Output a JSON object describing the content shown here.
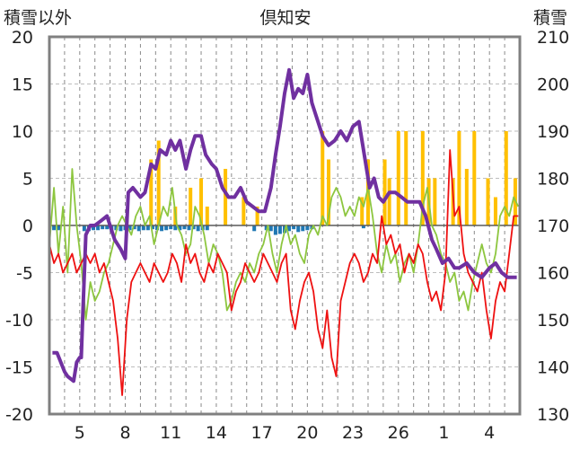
{
  "chart_data": {
    "type": "line",
    "title": "倶知安",
    "left_axis_label": "積雪以外",
    "right_axis_label": "積雪",
    "left_ylim": [
      -20,
      20
    ],
    "left_ticks": [
      "20",
      "15",
      "10",
      "5",
      "0",
      "-5",
      "-10",
      "-15",
      "-20"
    ],
    "right_ylim": [
      130,
      210
    ],
    "right_ticks": [
      "210",
      "200",
      "190",
      "180",
      "170",
      "160",
      "150",
      "140",
      "130"
    ],
    "x_ticks": [
      {
        "day": 5,
        "label": "5"
      },
      {
        "day": 8,
        "label": "8"
      },
      {
        "day": 11,
        "label": "11"
      },
      {
        "day": 14,
        "label": "14"
      },
      {
        "day": 17,
        "label": "17"
      },
      {
        "day": 20,
        "label": "20"
      },
      {
        "day": 23,
        "label": "23"
      },
      {
        "day": 26,
        "label": "26"
      },
      {
        "day": 29,
        "label": "1"
      },
      {
        "day": 32,
        "label": "4"
      }
    ],
    "grid": true,
    "colors": {
      "max_temp": "#8dc63f",
      "min_temp": "#ee1111",
      "snowfall": "#ffc000",
      "sunshine": "#1f78b4",
      "snow_depth": "#7030a0",
      "frame": "#808080"
    },
    "series": [
      {
        "key": "snow_depth",
        "axis": "right",
        "x": [
          3.2,
          3.5,
          4.0,
          4.2,
          4.6,
          4.8,
          5.0,
          5.1,
          5.2,
          5.4,
          5.7,
          6.0,
          6.4,
          6.8,
          7.3,
          7.7,
          8.0,
          8.2,
          8.5,
          9.0,
          9.3,
          9.7,
          10.0,
          10.3,
          10.7,
          11.0,
          11.3,
          11.6,
          12.0,
          12.3,
          12.6,
          13.0,
          13.3,
          13.7,
          14.0,
          14.4,
          14.8,
          15.2,
          15.6,
          16.0,
          16.4,
          16.8,
          17.2,
          17.6,
          17.9,
          18.2,
          18.5,
          18.8,
          19.1,
          19.4,
          19.7,
          20.0,
          20.3,
          20.6,
          21.0,
          21.4,
          21.8,
          22.2,
          22.6,
          23.0,
          23.4,
          23.8,
          24.1,
          24.4,
          24.7,
          25.0,
          25.4,
          25.8,
          26.2,
          26.6,
          27.0,
          27.4,
          27.8,
          28.2,
          28.5,
          28.9,
          29.3,
          29.7,
          30.0,
          30.5,
          31.0,
          31.5,
          32.0,
          32.4,
          32.8,
          33.2,
          33.6,
          33.8
        ],
        "values": [
          143,
          143,
          139,
          138,
          137,
          141,
          142,
          142,
          151,
          168,
          170,
          170,
          171,
          172,
          167,
          165,
          163,
          177,
          178,
          176,
          177,
          183,
          182,
          186,
          185,
          188,
          186,
          188,
          182,
          186,
          189,
          189,
          185,
          183,
          182,
          178,
          176,
          176,
          178,
          175,
          174,
          173,
          173,
          178,
          185,
          191,
          198,
          203,
          197,
          199,
          198,
          202,
          196,
          193,
          189,
          187,
          188,
          190,
          188,
          191,
          192,
          184,
          178,
          180,
          176,
          175,
          177,
          177,
          176,
          175,
          175,
          175,
          172,
          167,
          165,
          162,
          163,
          161,
          161,
          162,
          160,
          159,
          161,
          162,
          160,
          159,
          159,
          159
        ]
      },
      {
        "key": "max_temp",
        "axis": "left",
        "x": [
          3.0,
          3.3,
          3.6,
          3.9,
          4.2,
          4.5,
          4.8,
          5.1,
          5.4,
          5.7,
          6.0,
          6.3,
          6.6,
          6.9,
          7.2,
          7.5,
          7.8,
          8.1,
          8.4,
          8.7,
          9.0,
          9.3,
          9.6,
          9.9,
          10.2,
          10.5,
          10.8,
          11.1,
          11.4,
          11.7,
          12.0,
          12.3,
          12.6,
          12.9,
          13.2,
          13.5,
          13.8,
          14.1,
          14.4,
          14.7,
          15.0,
          15.3,
          15.6,
          15.9,
          16.2,
          16.5,
          16.8,
          17.1,
          17.4,
          17.7,
          18.0,
          18.3,
          18.6,
          18.9,
          19.2,
          19.5,
          19.8,
          20.1,
          20.4,
          20.7,
          21.0,
          21.3,
          21.6,
          21.9,
          22.2,
          22.5,
          22.8,
          23.1,
          23.4,
          23.7,
          24.0,
          24.3,
          24.6,
          24.9,
          25.2,
          25.5,
          25.8,
          26.1,
          26.4,
          26.7,
          27.0,
          27.3,
          27.6,
          27.9,
          28.2,
          28.5,
          28.8,
          29.1,
          29.4,
          29.7,
          30.0,
          30.3,
          30.6,
          30.9,
          31.2,
          31.5,
          31.8,
          32.1,
          32.4,
          32.7,
          33.0,
          33.3,
          33.6,
          33.9
        ],
        "values": [
          -2,
          4,
          -3,
          2,
          -5,
          6,
          0,
          -4,
          -10,
          -6,
          -8,
          -7,
          -5,
          -4,
          -2,
          0,
          1,
          0,
          -1,
          1,
          2,
          0,
          1,
          -2,
          0,
          2,
          1,
          4,
          0,
          -1,
          -3,
          -2,
          2,
          1,
          -1,
          -4,
          -2,
          -3,
          -5,
          -9,
          -8,
          -6,
          -5,
          -6,
          -4,
          -5,
          -3,
          -2,
          0,
          -3,
          -5,
          -2,
          0,
          -2,
          -1,
          -3,
          -4,
          -1,
          0,
          -1,
          1,
          0,
          3,
          4,
          3,
          1,
          2,
          1,
          3,
          2,
          4,
          1,
          -3,
          -5,
          -2,
          -4,
          -3,
          -6,
          -4,
          -3,
          -5,
          -2,
          2,
          4,
          0,
          -1,
          -3,
          -4,
          -6,
          -5,
          -8,
          -7,
          -9,
          -6,
          -4,
          -2,
          -4,
          -5,
          -3,
          1,
          2,
          1,
          3,
          2
        ]
      },
      {
        "key": "min_temp",
        "axis": "left",
        "x": [
          3.0,
          3.3,
          3.6,
          3.9,
          4.2,
          4.5,
          4.8,
          5.1,
          5.4,
          5.7,
          6.0,
          6.3,
          6.6,
          6.9,
          7.2,
          7.5,
          7.8,
          8.1,
          8.4,
          8.7,
          9.0,
          9.3,
          9.6,
          9.9,
          10.2,
          10.5,
          10.8,
          11.1,
          11.4,
          11.7,
          12.0,
          12.3,
          12.6,
          12.9,
          13.2,
          13.5,
          13.8,
          14.1,
          14.4,
          14.7,
          15.0,
          15.3,
          15.6,
          15.9,
          16.2,
          16.5,
          16.8,
          17.1,
          17.4,
          17.7,
          18.0,
          18.3,
          18.6,
          18.9,
          19.2,
          19.5,
          19.8,
          20.1,
          20.4,
          20.7,
          21.0,
          21.3,
          21.6,
          21.9,
          22.2,
          22.5,
          22.8,
          23.1,
          23.4,
          23.7,
          24.0,
          24.3,
          24.6,
          24.9,
          25.2,
          25.5,
          25.8,
          26.1,
          26.4,
          26.7,
          27.0,
          27.3,
          27.6,
          27.9,
          28.2,
          28.5,
          28.8,
          29.1,
          29.4,
          29.7,
          30.0,
          30.3,
          30.6,
          30.9,
          31.2,
          31.5,
          31.8,
          32.1,
          32.4,
          32.7,
          33.0,
          33.3,
          33.6,
          33.9
        ],
        "values": [
          -2,
          -4,
          -3,
          -5,
          -4,
          -3,
          -5,
          -4,
          -3,
          -4,
          -3,
          -5,
          -4,
          -6,
          -8,
          -12,
          -18,
          -10,
          -6,
          -5,
          -4,
          -5,
          -6,
          -4,
          -5,
          -6,
          -5,
          -3,
          -4,
          -6,
          -2,
          -4,
          -3,
          -5,
          -6,
          -4,
          -5,
          -3,
          -4,
          -5,
          -9,
          -7,
          -6,
          -4,
          -5,
          -6,
          -5,
          -3,
          -4,
          -5,
          -6,
          -4,
          -3,
          -9,
          -11,
          -8,
          -6,
          -5,
          -7,
          -11,
          -13,
          -9,
          -14,
          -16,
          -8,
          -6,
          -4,
          -3,
          -4,
          -6,
          -5,
          -3,
          -4,
          1,
          -2,
          -1,
          -3,
          -2,
          -5,
          -3,
          -4,
          -2,
          -3,
          -6,
          -8,
          -7,
          -9,
          -5,
          8,
          1,
          2,
          -3,
          -5,
          -6,
          -7,
          -5,
          -9,
          -12,
          -8,
          -6,
          -7,
          -3,
          1,
          1
        ]
      },
      {
        "key": "snowfall",
        "axis": "left",
        "kind": "bar",
        "x": [
          9.7,
          10.2,
          11.3,
          12.3,
          13.0,
          13.4,
          14.6,
          15.8,
          16.7,
          21.0,
          21.4,
          23.6,
          24.0,
          25.1,
          25.4,
          26.0,
          26.5,
          27.6,
          28.0,
          28.4,
          29.6,
          30.0,
          30.5,
          31.0,
          31.9,
          32.4,
          33.1,
          33.7
        ],
        "values": [
          7,
          9,
          2,
          4,
          5,
          2,
          6,
          3,
          2,
          10,
          7,
          3,
          7,
          7,
          5,
          10,
          10,
          10,
          5,
          5,
          5,
          10,
          6,
          10,
          5,
          3,
          10,
          5
        ]
      },
      {
        "key": "sunshine",
        "axis": "left",
        "kind": "bar",
        "x": [
          3.3,
          3.6,
          5.3,
          5.6,
          5.9,
          6.2,
          6.5,
          6.8,
          7.1,
          7.4,
          7.7,
          8.0,
          8.3,
          8.6,
          8.9,
          9.2,
          9.5,
          9.8,
          10.1,
          10.4,
          10.7,
          11.0,
          11.3,
          11.6,
          11.9,
          12.2,
          12.5,
          12.8,
          13.1,
          13.4,
          16.5,
          17.3,
          17.6,
          17.9,
          18.2,
          18.5,
          18.8,
          19.1,
          19.4,
          19.7,
          20.0,
          20.3,
          23.7
        ],
        "values": [
          -0.5,
          -0.5,
          -0.6,
          -0.6,
          -0.5,
          -0.5,
          -0.4,
          -0.4,
          -0.6,
          -0.5,
          -0.6,
          -0.5,
          -0.5,
          -0.4,
          -0.6,
          -0.5,
          -0.5,
          -0.4,
          -0.5,
          -0.6,
          -0.5,
          -0.4,
          -0.5,
          -0.5,
          -0.4,
          -0.5,
          -0.4,
          -0.6,
          -0.5,
          -0.5,
          -0.6,
          -0.5,
          -0.6,
          -1.0,
          -0.9,
          -0.8,
          -0.6,
          -0.4,
          -0.7,
          -0.6,
          -0.5,
          -0.4,
          -0.3
        ]
      }
    ]
  }
}
